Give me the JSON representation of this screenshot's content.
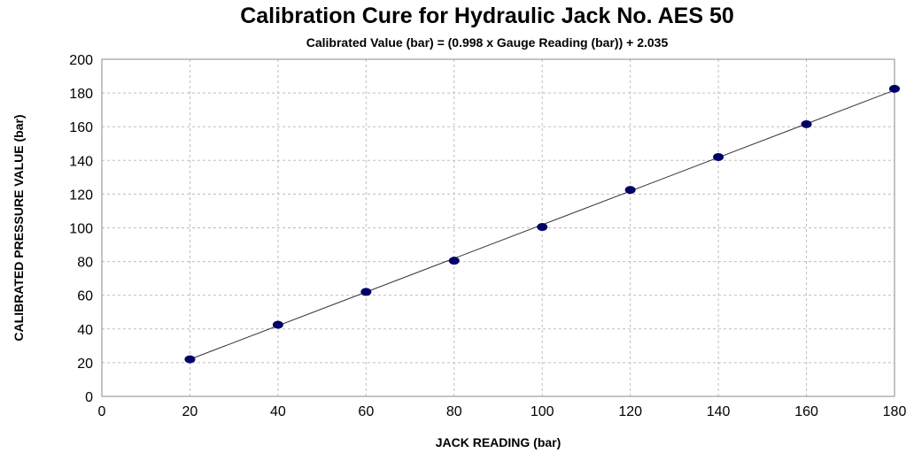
{
  "chart_data": {
    "type": "scatter",
    "title": "Calibration Cure for Hydraulic Jack No. AES 50",
    "subtitle": "Calibrated Value (bar)  = (0.998 x Gauge Reading (bar)) + 2.035",
    "xlabel": "JACK READING (bar)",
    "ylabel": "CALIBRATED PRESSURE VALUE  (bar)",
    "xlim": [
      0,
      180
    ],
    "ylim": [
      0,
      200
    ],
    "xticks": [
      0,
      20,
      40,
      60,
      80,
      100,
      120,
      140,
      160,
      180
    ],
    "yticks": [
      0,
      20,
      40,
      60,
      80,
      100,
      120,
      140,
      160,
      180,
      200
    ],
    "grid": true,
    "legend": "none",
    "series": [
      {
        "x": [
          20,
          40,
          60,
          80,
          100,
          120,
          140,
          160,
          180
        ],
        "y": [
          22,
          42.5,
          62,
          80.5,
          100.5,
          122.5,
          142,
          161.5,
          182.5
        ],
        "color": "#000066"
      }
    ],
    "trendline": {
      "slope": 0.998,
      "intercept": 2.035,
      "color": "#333333"
    }
  }
}
